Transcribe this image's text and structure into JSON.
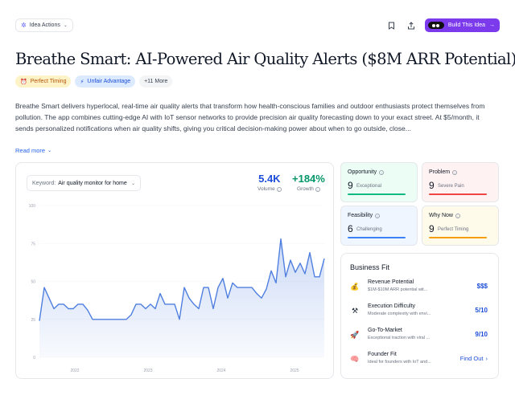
{
  "toolbar": {
    "idea_actions_label": "Idea Actions",
    "build_label": "Build This Idea"
  },
  "idea": {
    "title": "Breathe Smart: AI-Powered Air Quality Alerts ($8M ARR Potential)",
    "tags": [
      {
        "label": "Perfect Timing",
        "icon": "alarm-clock-icon"
      },
      {
        "label": "Unfair Advantage",
        "icon": "lightning-icon"
      },
      {
        "label": "+11 More"
      }
    ],
    "description": "Breathe Smart delivers hyperlocal, real-time air quality alerts that transform how health-conscious families and outdoor enthusiasts protect themselves from pollution. The app combines cutting-edge AI with IoT sensor networks to provide precision air quality forecasting down to your exact street. At $5/month, it sends personalized notifications when air quality shifts, giving you critical decision-making power about when to go outside, close...",
    "read_more": "Read more"
  },
  "trend": {
    "keyword_label": "Keyword:",
    "keyword_value": "Air quality monitor for home",
    "volume_value": "5.4K",
    "volume_label": "Volume",
    "growth_value": "+184%",
    "growth_label": "Growth",
    "accent_color": "#4f7fe0"
  },
  "chart_data": {
    "type": "area",
    "x_ticks": [
      "2022",
      "2023",
      "2024",
      "2025"
    ],
    "y_ticks": [
      "0",
      "25",
      "50",
      "75",
      "100"
    ],
    "ylim": [
      0,
      100
    ],
    "x_range": [
      0,
      59
    ],
    "series": [
      {
        "values": [
          24,
          46,
          39,
          32,
          35,
          35,
          32,
          32,
          35,
          35,
          31,
          25,
          25,
          25,
          25,
          25,
          25,
          25,
          25,
          28,
          35,
          35,
          32,
          35,
          32,
          42,
          35,
          35,
          35,
          25,
          46,
          39,
          35,
          32,
          46,
          46,
          32,
          46,
          52,
          39,
          49,
          46,
          46,
          46,
          46,
          42,
          39,
          45,
          57,
          49,
          78,
          53,
          64,
          56,
          62,
          55,
          69,
          53,
          53,
          65
        ]
      }
    ]
  },
  "metrics": [
    {
      "title": "Opportunity",
      "value": "9",
      "desc": "Exceptional"
    },
    {
      "title": "Problem",
      "value": "9",
      "desc": "Severe Pain"
    },
    {
      "title": "Feasibility",
      "value": "6",
      "desc": "Challenging"
    },
    {
      "title": "Why Now",
      "value": "9",
      "desc": "Perfect Timing"
    }
  ],
  "business_fit": {
    "title": "Business Fit",
    "rows": [
      {
        "icon": "money-bag-icon",
        "name": "Revenue Potential",
        "desc": "$1M-$10M ARR potential wit...",
        "value": "$$$"
      },
      {
        "icon": "tools-icon",
        "name": "Execution Difficulty",
        "desc": "Moderate complexity with envi...",
        "value": "5/10"
      },
      {
        "icon": "rocket-icon",
        "name": "Go-To-Market",
        "desc": "Exceptional traction with viral ...",
        "value": "9/10"
      },
      {
        "icon": "brain-icon",
        "name": "Founder Fit",
        "desc": "Ideal for founders with IoT and...",
        "link": "Find Out"
      }
    ]
  }
}
